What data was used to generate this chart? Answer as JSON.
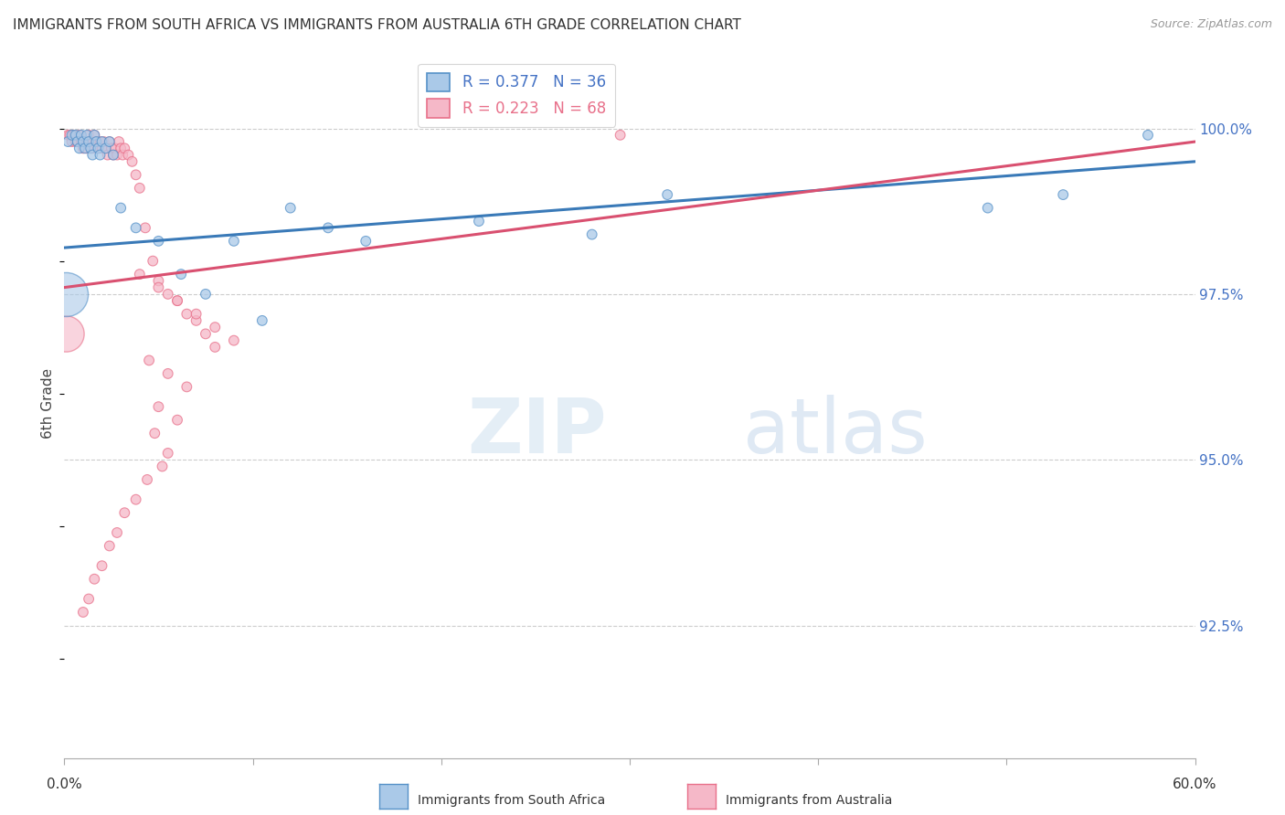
{
  "title": "IMMIGRANTS FROM SOUTH AFRICA VS IMMIGRANTS FROM AUSTRALIA 6TH GRADE CORRELATION CHART",
  "source": "Source: ZipAtlas.com",
  "ylabel": "6th Grade",
  "ytick_labels": [
    "100.0%",
    "97.5%",
    "95.0%",
    "92.5%"
  ],
  "ytick_values": [
    1.0,
    0.975,
    0.95,
    0.925
  ],
  "xlim": [
    0.0,
    0.6
  ],
  "ylim": [
    0.905,
    1.012
  ],
  "legend_blue_label": "R = 0.377",
  "legend_blue_n": "N = 36",
  "legend_pink_label": "R = 0.223",
  "legend_pink_n": "N = 68",
  "blue_color": "#aac9e8",
  "pink_color": "#f5b8c8",
  "blue_edge_color": "#5591c8",
  "pink_edge_color": "#e8708a",
  "blue_line_color": "#3a7ab8",
  "pink_line_color": "#d95070",
  "watermark_zip": "ZIP",
  "watermark_atlas": "atlas",
  "grid_color": "#cccccc",
  "title_fontsize": 11,
  "source_fontsize": 9,
  "legend_fontsize": 12,
  "right_tick_color": "#4472c4",
  "blue_scatter_x": [
    0.002,
    0.004,
    0.006,
    0.007,
    0.008,
    0.009,
    0.01,
    0.011,
    0.012,
    0.013,
    0.014,
    0.015,
    0.016,
    0.017,
    0.018,
    0.019,
    0.02,
    0.022,
    0.024,
    0.026,
    0.03,
    0.038,
    0.05,
    0.062,
    0.075,
    0.09,
    0.105,
    0.12,
    0.14,
    0.16,
    0.22,
    0.28,
    0.32,
    0.49,
    0.53,
    0.575
  ],
  "blue_scatter_y": [
    0.998,
    0.999,
    0.999,
    0.998,
    0.997,
    0.999,
    0.998,
    0.997,
    0.999,
    0.998,
    0.997,
    0.996,
    0.999,
    0.998,
    0.997,
    0.996,
    0.998,
    0.997,
    0.998,
    0.996,
    0.988,
    0.985,
    0.983,
    0.978,
    0.975,
    0.983,
    0.971,
    0.988,
    0.985,
    0.983,
    0.986,
    0.984,
    0.99,
    0.988,
    0.99,
    0.999
  ],
  "blue_scatter_sizes": [
    60,
    60,
    60,
    60,
    60,
    60,
    60,
    60,
    60,
    60,
    60,
    60,
    60,
    60,
    60,
    60,
    60,
    60,
    60,
    60,
    60,
    60,
    60,
    60,
    60,
    60,
    60,
    60,
    60,
    60,
    60,
    60,
    60,
    60,
    60,
    60
  ],
  "blue_big_x": [
    0.001
  ],
  "blue_big_y": [
    0.975
  ],
  "blue_big_size": [
    1200
  ],
  "pink_scatter_x": [
    0.002,
    0.003,
    0.004,
    0.005,
    0.006,
    0.007,
    0.008,
    0.009,
    0.01,
    0.011,
    0.012,
    0.013,
    0.014,
    0.015,
    0.016,
    0.017,
    0.018,
    0.019,
    0.02,
    0.021,
    0.022,
    0.023,
    0.024,
    0.025,
    0.026,
    0.027,
    0.028,
    0.029,
    0.03,
    0.031,
    0.032,
    0.034,
    0.036,
    0.038,
    0.04,
    0.043,
    0.047,
    0.05,
    0.055,
    0.06,
    0.065,
    0.07,
    0.075,
    0.08,
    0.04,
    0.05,
    0.06,
    0.07,
    0.08,
    0.09,
    0.045,
    0.055,
    0.065,
    0.05,
    0.06,
    0.048,
    0.055,
    0.052,
    0.044,
    0.038,
    0.032,
    0.028,
    0.024,
    0.02,
    0.016,
    0.013,
    0.01,
    0.295
  ],
  "pink_scatter_y": [
    0.999,
    0.999,
    0.998,
    0.999,
    0.998,
    0.998,
    0.999,
    0.998,
    0.997,
    0.998,
    0.997,
    0.999,
    0.998,
    0.997,
    0.999,
    0.998,
    0.997,
    0.998,
    0.997,
    0.998,
    0.997,
    0.996,
    0.998,
    0.997,
    0.996,
    0.997,
    0.996,
    0.998,
    0.997,
    0.996,
    0.997,
    0.996,
    0.995,
    0.993,
    0.991,
    0.985,
    0.98,
    0.977,
    0.975,
    0.974,
    0.972,
    0.971,
    0.969,
    0.967,
    0.978,
    0.976,
    0.974,
    0.972,
    0.97,
    0.968,
    0.965,
    0.963,
    0.961,
    0.958,
    0.956,
    0.954,
    0.951,
    0.949,
    0.947,
    0.944,
    0.942,
    0.939,
    0.937,
    0.934,
    0.932,
    0.929,
    0.927,
    0.999
  ],
  "pink_scatter_sizes": [
    60,
    60,
    60,
    60,
    60,
    60,
    60,
    60,
    60,
    60,
    60,
    60,
    60,
    60,
    60,
    60,
    60,
    60,
    60,
    60,
    60,
    60,
    60,
    60,
    60,
    60,
    60,
    60,
    60,
    60,
    60,
    60,
    60,
    60,
    60,
    60,
    60,
    60,
    60,
    60,
    60,
    60,
    60,
    60,
    60,
    60,
    60,
    60,
    60,
    60,
    60,
    60,
    60,
    60,
    60,
    60,
    60,
    60,
    60,
    60,
    60,
    60,
    60,
    60,
    60,
    60,
    60,
    60
  ],
  "pink_big_x": [
    0.001
  ],
  "pink_big_y": [
    0.969
  ],
  "pink_big_size": [
    800
  ],
  "blue_trend_x0": 0.0,
  "blue_trend_y0": 0.982,
  "blue_trend_x1": 0.6,
  "blue_trend_y1": 0.995,
  "pink_trend_x0": 0.0,
  "pink_trend_y0": 0.976,
  "pink_trend_x1": 0.6,
  "pink_trend_y1": 0.998
}
